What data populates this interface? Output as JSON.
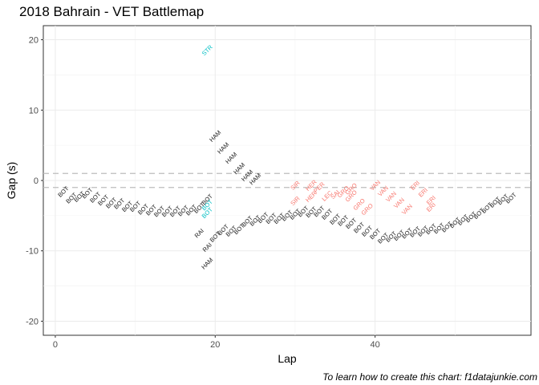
{
  "chart_data": {
    "type": "scatter",
    "title": "2018 Bahrain - VET Battlemap",
    "xlabel": "Lap",
    "ylabel": "Gap (s)",
    "xlim": [
      -1.5,
      59.5
    ],
    "ylim": [
      -22,
      22
    ],
    "xticks": [
      0,
      20,
      40
    ],
    "yticks": [
      -20,
      -10,
      0,
      10,
      20
    ],
    "grid": true,
    "reference_lines": [
      1,
      -1
    ],
    "caption": "To learn how to create this chart: f1datajunkie.com",
    "colors": {
      "ahead_lapped": "#F8766D",
      "lapping": "#00BFC4",
      "race": "#1a1a1a"
    },
    "points": [
      {
        "lap": 19,
        "gap": 18.5,
        "label": "STR",
        "group": "lapping"
      },
      {
        "lap": 20,
        "gap": 6.3,
        "label": "HAM",
        "group": "race"
      },
      {
        "lap": 21,
        "gap": 4.6,
        "label": "HAM",
        "group": "race"
      },
      {
        "lap": 22,
        "gap": 3.2,
        "label": "HAM",
        "group": "race"
      },
      {
        "lap": 23,
        "gap": 1.7,
        "label": "HAM",
        "group": "race"
      },
      {
        "lap": 24,
        "gap": 0.7,
        "label": "HAM",
        "group": "race"
      },
      {
        "lap": 25,
        "gap": 0.2,
        "label": "HAM",
        "group": "race"
      },
      {
        "lap": 1,
        "gap": -1.6,
        "label": "BOT",
        "group": "race"
      },
      {
        "lap": 2,
        "gap": -2.5,
        "label": "BOT",
        "group": "race"
      },
      {
        "lap": 3,
        "gap": -2.3,
        "label": "BOT",
        "group": "race"
      },
      {
        "lap": 4,
        "gap": -1.8,
        "label": "BOT",
        "group": "race"
      },
      {
        "lap": 5,
        "gap": -2.4,
        "label": "BOT",
        "group": "race"
      },
      {
        "lap": 6,
        "gap": -2.8,
        "label": "BOT",
        "group": "race"
      },
      {
        "lap": 7,
        "gap": -3.2,
        "label": "BOT",
        "group": "race"
      },
      {
        "lap": 8,
        "gap": -3.3,
        "label": "BOT",
        "group": "race"
      },
      {
        "lap": 9,
        "gap": -3.7,
        "label": "BOT",
        "group": "race"
      },
      {
        "lap": 10,
        "gap": -3.7,
        "label": "BOT",
        "group": "race"
      },
      {
        "lap": 11,
        "gap": -4.1,
        "label": "BOT",
        "group": "race"
      },
      {
        "lap": 12,
        "gap": -4.2,
        "label": "BOT",
        "group": "race"
      },
      {
        "lap": 13,
        "gap": -4.4,
        "label": "BOT",
        "group": "race"
      },
      {
        "lap": 14,
        "gap": -4.4,
        "label": "BOT",
        "group": "race"
      },
      {
        "lap": 15,
        "gap": -4.4,
        "label": "BOT",
        "group": "race"
      },
      {
        "lap": 16,
        "gap": -4.3,
        "label": "BOT",
        "group": "race"
      },
      {
        "lap": 17,
        "gap": -4.2,
        "label": "BOT",
        "group": "race"
      },
      {
        "lap": 18,
        "gap": -3.9,
        "label": "BOT",
        "group": "race"
      },
      {
        "lap": 19,
        "gap": -2.7,
        "label": "BOT",
        "group": "race"
      },
      {
        "lap": 19,
        "gap": -3.5,
        "label": "BOT",
        "group": "lapping"
      },
      {
        "lap": 19,
        "gap": -4.6,
        "label": "BOT",
        "group": "lapping"
      },
      {
        "lap": 18,
        "gap": -7.5,
        "label": "RAI",
        "group": "race"
      },
      {
        "lap": 19,
        "gap": -9.5,
        "label": "RAI",
        "group": "race"
      },
      {
        "lap": 19,
        "gap": -11.8,
        "label": "HAM",
        "group": "race"
      },
      {
        "lap": 20,
        "gap": -8.0,
        "label": "BOT",
        "group": "race"
      },
      {
        "lap": 21,
        "gap": -7.0,
        "label": "BOT",
        "group": "race"
      },
      {
        "lap": 22,
        "gap": -7.2,
        "label": "BOT",
        "group": "race"
      },
      {
        "lap": 23,
        "gap": -6.9,
        "label": "BOT",
        "group": "race"
      },
      {
        "lap": 24,
        "gap": -5.8,
        "label": "BOT",
        "group": "race"
      },
      {
        "lap": 25,
        "gap": -5.7,
        "label": "BOT",
        "group": "race"
      },
      {
        "lap": 26,
        "gap": -5.3,
        "label": "BOT",
        "group": "race"
      },
      {
        "lap": 27,
        "gap": -5.4,
        "label": "BOT",
        "group": "race"
      },
      {
        "lap": 28,
        "gap": -5.4,
        "label": "BOT",
        "group": "race"
      },
      {
        "lap": 29,
        "gap": -5.0,
        "label": "BOT",
        "group": "race"
      },
      {
        "lap": 30,
        "gap": -4.8,
        "label": "BOT",
        "group": "race"
      },
      {
        "lap": 31,
        "gap": -4.4,
        "label": "BOT",
        "group": "race"
      },
      {
        "lap": 32,
        "gap": -4.5,
        "label": "BOT",
        "group": "race"
      },
      {
        "lap": 33,
        "gap": -4.4,
        "label": "BOT",
        "group": "race"
      },
      {
        "lap": 34,
        "gap": -4.8,
        "label": "BOT",
        "group": "race"
      },
      {
        "lap": 35,
        "gap": -5.5,
        "label": "BOT",
        "group": "race"
      },
      {
        "lap": 36,
        "gap": -5.7,
        "label": "BOT",
        "group": "race"
      },
      {
        "lap": 37,
        "gap": -6.1,
        "label": "BOT",
        "group": "race"
      },
      {
        "lap": 38,
        "gap": -6.7,
        "label": "BOT",
        "group": "race"
      },
      {
        "lap": 39,
        "gap": -7.2,
        "label": "BOT",
        "group": "race"
      },
      {
        "lap": 40,
        "gap": -7.6,
        "label": "BOT",
        "group": "race"
      },
      {
        "lap": 41,
        "gap": -8.2,
        "label": "BOT",
        "group": "race"
      },
      {
        "lap": 42,
        "gap": -8.0,
        "label": "BOT",
        "group": "race"
      },
      {
        "lap": 43,
        "gap": -7.8,
        "label": "BOT",
        "group": "race"
      },
      {
        "lap": 44,
        "gap": -7.5,
        "label": "BOT",
        "group": "race"
      },
      {
        "lap": 45,
        "gap": -7.3,
        "label": "BOT",
        "group": "race"
      },
      {
        "lap": 46,
        "gap": -7.2,
        "label": "BOT",
        "group": "race"
      },
      {
        "lap": 47,
        "gap": -6.9,
        "label": "BOT",
        "group": "race"
      },
      {
        "lap": 48,
        "gap": -6.8,
        "label": "BOT",
        "group": "race"
      },
      {
        "lap": 49,
        "gap": -6.6,
        "label": "BOT",
        "group": "race"
      },
      {
        "lap": 50,
        "gap": -6.0,
        "label": "BOT",
        "group": "race"
      },
      {
        "lap": 51,
        "gap": -5.6,
        "label": "BOT",
        "group": "race"
      },
      {
        "lap": 52,
        "gap": -5.2,
        "label": "BOT",
        "group": "race"
      },
      {
        "lap": 53,
        "gap": -4.7,
        "label": "BOT",
        "group": "race"
      },
      {
        "lap": 54,
        "gap": -3.9,
        "label": "BOT",
        "group": "race"
      },
      {
        "lap": 55,
        "gap": -3.1,
        "label": "BOT",
        "group": "race"
      },
      {
        "lap": 56,
        "gap": -2.7,
        "label": "BOT",
        "group": "race"
      },
      {
        "lap": 57,
        "gap": -2.5,
        "label": "BOT",
        "group": "race"
      },
      {
        "lap": 30,
        "gap": -0.7,
        "label": "SIR",
        "group": "ahead_lapped"
      },
      {
        "lap": 30,
        "gap": -2.9,
        "label": "SIR",
        "group": "ahead_lapped"
      },
      {
        "lap": 32,
        "gap": -0.7,
        "label": "HER",
        "group": "ahead_lapped"
      },
      {
        "lap": 32,
        "gap": -2.3,
        "label": "HER",
        "group": "ahead_lapped"
      },
      {
        "lap": 33,
        "gap": -1.0,
        "label": "PER",
        "group": "ahead_lapped"
      },
      {
        "lap": 34,
        "gap": -2.2,
        "label": "LEC",
        "group": "ahead_lapped"
      },
      {
        "lap": 35,
        "gap": -2.0,
        "label": "SAI",
        "group": "ahead_lapped"
      },
      {
        "lap": 36,
        "gap": -1.6,
        "label": "GRO",
        "group": "ahead_lapped"
      },
      {
        "lap": 37,
        "gap": -1.2,
        "label": "GRO",
        "group": "ahead_lapped"
      },
      {
        "lap": 37,
        "gap": -2.2,
        "label": "GRO",
        "group": "ahead_lapped"
      },
      {
        "lap": 38,
        "gap": -3.4,
        "label": "GRO",
        "group": "ahead_lapped"
      },
      {
        "lap": 39,
        "gap": -4.1,
        "label": "GRO",
        "group": "ahead_lapped"
      },
      {
        "lap": 40,
        "gap": -0.7,
        "label": "VAN",
        "group": "ahead_lapped"
      },
      {
        "lap": 41,
        "gap": -1.5,
        "label": "VAN",
        "group": "ahead_lapped"
      },
      {
        "lap": 42,
        "gap": -2.3,
        "label": "VAN",
        "group": "ahead_lapped"
      },
      {
        "lap": 43,
        "gap": -3.2,
        "label": "VAN",
        "group": "ahead_lapped"
      },
      {
        "lap": 44,
        "gap": -4.1,
        "label": "VAN",
        "group": "ahead_lapped"
      },
      {
        "lap": 45,
        "gap": -0.7,
        "label": "ERI",
        "group": "ahead_lapped"
      },
      {
        "lap": 46,
        "gap": -1.7,
        "label": "ERI",
        "group": "ahead_lapped"
      },
      {
        "lap": 47,
        "gap": -2.8,
        "label": "ERI",
        "group": "ahead_lapped"
      },
      {
        "lap": 47,
        "gap": -3.8,
        "label": "ERI",
        "group": "ahead_lapped"
      }
    ]
  }
}
